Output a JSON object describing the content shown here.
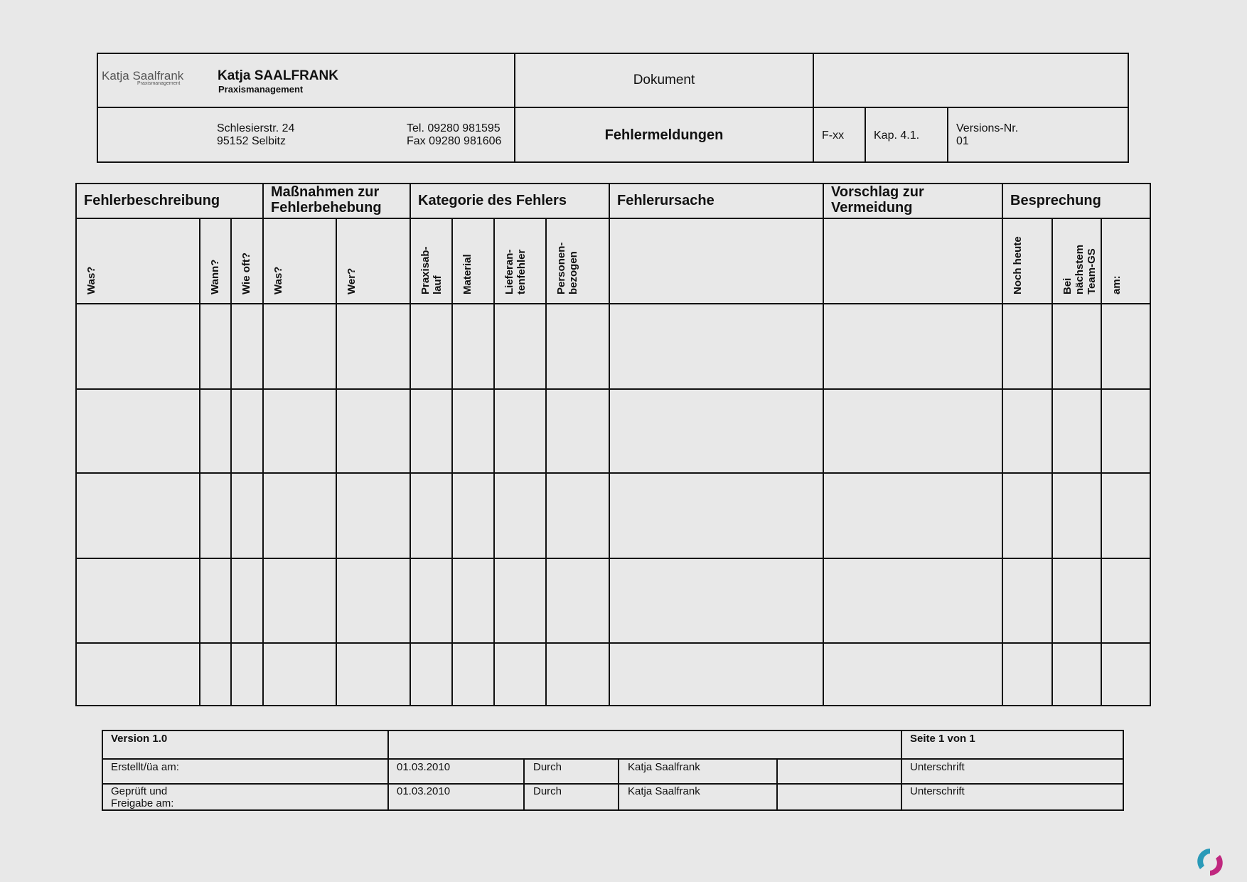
{
  "header": {
    "logo": {
      "line1": "Katja Saalfrank",
      "line2": "Praxismanagement"
    },
    "company_name": "Katja  SAALFRANK",
    "company_sub": "Praxismanagement",
    "street": "Schlesierstr. 24",
    "city": "95152 Selbitz",
    "tel": "Tel. 09280 981595",
    "fax": "Fax 09280 981606",
    "doc_label": "Dokument",
    "doc_title": "Fehlermeldungen",
    "doc_code": "F-xx",
    "chapter": "Kap. 4.1.",
    "version_label": "Versions-Nr.",
    "version_value": "01"
  },
  "table": {
    "groups": [
      "Fehlerbeschreibung",
      "Maßnahmen zur Fehlerbehebung",
      "Kategorie des Fehlers",
      "Fehlerursache",
      "Vorschlag zur Vermeidung",
      "Besprechung"
    ],
    "group_lines": {
      "massnahmen": [
        "Maßnahmen zur",
        "Fehlerbehebung"
      ],
      "vorschlag": [
        "Vorschlag zur",
        "Vermeidung"
      ]
    },
    "subcolumns": [
      "Was?",
      "Wann?",
      "Wie oft?",
      "Was?",
      "Wer?",
      "Praxisab-|lauf",
      "Material",
      "Lieferan-|tenfehler",
      "Personen-|bezogen",
      "",
      "",
      "Noch heute",
      "Bei|nächstem|Team-GS",
      "am:"
    ],
    "empty_rows": 5
  },
  "footer": {
    "version": "Version 1.0",
    "page": "Seite 1 von 1",
    "rows": [
      {
        "label": "Erstellt/üa am:",
        "date": "01.03.2010",
        "by_label": "Durch",
        "name": "Katja Saalfrank",
        "sign": "Unterschrift"
      },
      {
        "label": "Geprüft und Freigabe am:",
        "date": "01.03.2010",
        "by_label": "Durch",
        "name": "Katja Saalfrank",
        "sign": "Unterschrift"
      }
    ]
  },
  "watermark_logo": "circular-arrows-logo"
}
